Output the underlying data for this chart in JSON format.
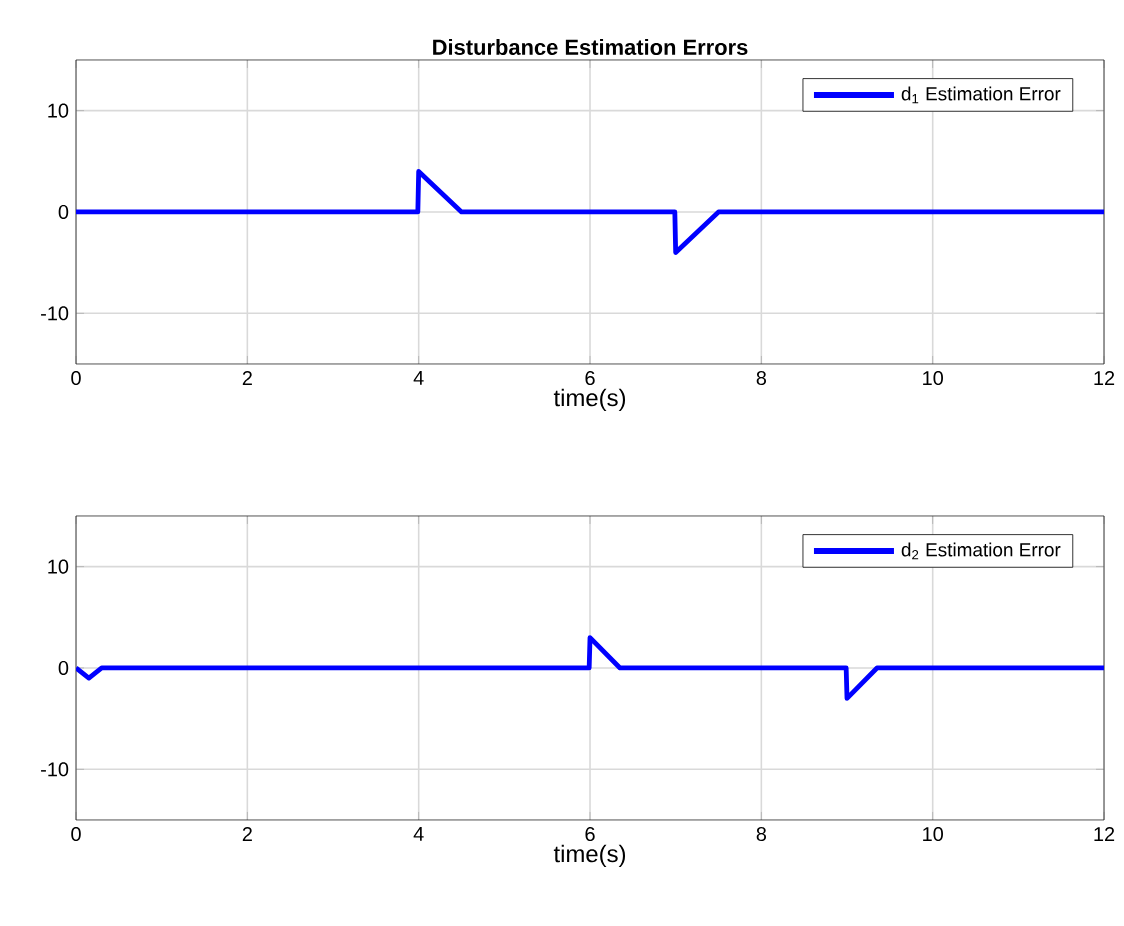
{
  "chart_data": [
    {
      "type": "line",
      "title": "Disturbance Estimation Errors",
      "xlabel": "time(s)",
      "xlim": [
        0,
        12
      ],
      "ylim": [
        -15,
        15
      ],
      "xticks": [
        0,
        2,
        4,
        6,
        8,
        10,
        12
      ],
      "yticks": [
        -10,
        0,
        10
      ],
      "grid": true,
      "legend": "top right",
      "series": [
        {
          "name": "d$_{1}$ Estimation Error",
          "color": "#0000ff",
          "x": [
            0,
            3.99,
            4,
            4.5,
            6.99,
            7,
            7.5,
            12
          ],
          "values": [
            0,
            0,
            4,
            0,
            0,
            -4,
            0,
            0
          ]
        }
      ]
    },
    {
      "type": "line",
      "xlabel": "time(s)",
      "xlim": [
        0,
        12
      ],
      "ylim": [
        -15,
        15
      ],
      "xticks": [
        0,
        2,
        4,
        6,
        8,
        10,
        12
      ],
      "yticks": [
        -10,
        0,
        10
      ],
      "grid": true,
      "legend": "top right",
      "series": [
        {
          "name": "d$_{2}$ Estimation Error",
          "color": "#0000ff",
          "x": [
            0,
            0.15,
            0.3,
            5.99,
            6,
            6.35,
            8.99,
            9,
            9.35,
            12
          ],
          "values": [
            0,
            -1,
            0,
            0,
            3,
            0,
            0,
            -3,
            0,
            0
          ]
        }
      ]
    }
  ]
}
